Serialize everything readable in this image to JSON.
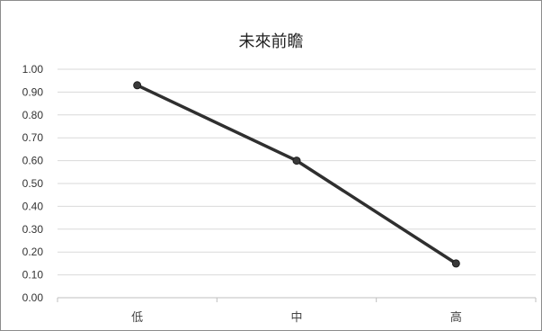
{
  "chart_data": {
    "type": "line",
    "title": "未來前瞻",
    "categories": [
      "低",
      "中",
      "高"
    ],
    "series": [
      {
        "values": [
          0.93,
          0.6,
          0.15
        ]
      }
    ],
    "ylim": [
      0.0,
      1.0
    ],
    "yticks": [
      "0.00",
      "0.10",
      "0.20",
      "0.30",
      "0.40",
      "0.50",
      "0.60",
      "0.70",
      "0.80",
      "0.90",
      "1.00"
    ],
    "grid": true,
    "line_color": "#2f2f2f",
    "grid_color": "#d9d9d9",
    "axis_color": "#bfbfbf",
    "marker_color": "#3a3a3a"
  }
}
